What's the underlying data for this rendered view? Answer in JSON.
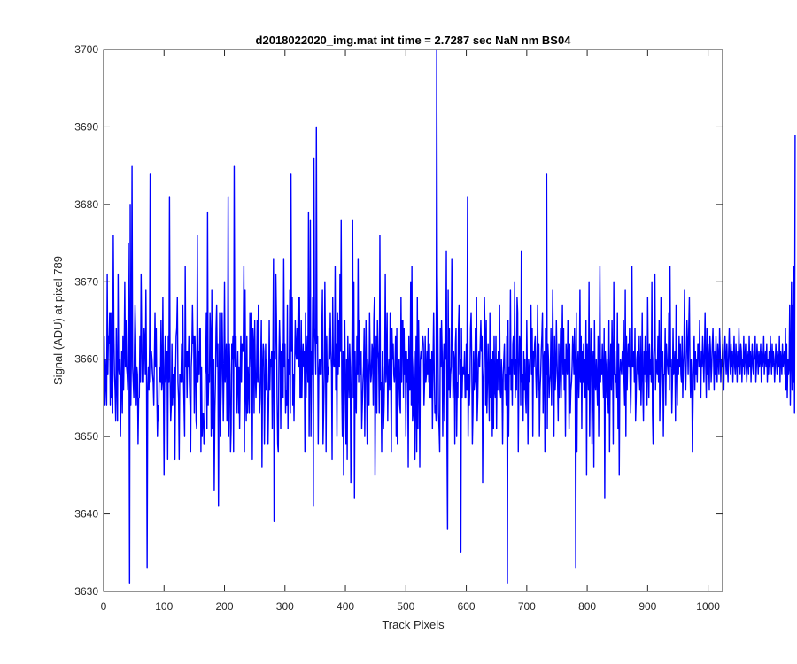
{
  "chart_data": {
    "type": "line",
    "title": "d2018022020_img.mat int time = 2.7287 sec  NaN nm BS04",
    "xlabel": "Track Pixels",
    "ylabel": "Signal (ADU) at pixel 789",
    "xlim": [
      0,
      1024
    ],
    "ylim": [
      3630,
      3700
    ],
    "x_ticks": [
      0,
      100,
      200,
      300,
      400,
      500,
      600,
      700,
      800,
      900,
      1000
    ],
    "y_ticks": [
      3630,
      3640,
      3650,
      3660,
      3670,
      3680,
      3690,
      3700
    ],
    "grid": false,
    "legend": "none",
    "series": [
      {
        "color": "#0000ff",
        "x_start": 1,
        "x_step": 1,
        "values": [
          3663,
          3654,
          3660,
          3657,
          3654,
          3671,
          3658,
          3663,
          3662,
          3666,
          3654,
          3666,
          3655,
          3656,
          3653,
          3676,
          3663,
          3658,
          3656,
          3652,
          3664,
          3657,
          3652,
          3671,
          3659,
          3658,
          3660,
          3650,
          3657,
          3661,
          3653,
          3663,
          3656,
          3661,
          3670,
          3659,
          3665,
          3659,
          3658,
          3656,
          3675,
          3664,
          3631,
          3680,
          3654,
          3661,
          3685,
          3659,
          3657,
          3655,
          3661,
          3667,
          3663,
          3654,
          3659,
          3658,
          3649,
          3655,
          3655,
          3663,
          3657,
          3671,
          3663,
          3657,
          3657,
          3657,
          3664,
          3662,
          3658,
          3669,
          3658,
          3633,
          3656,
          3659,
          3656,
          3662,
          3684,
          3657,
          3661,
          3660,
          3658,
          3657,
          3654,
          3660,
          3666,
          3659,
          3664,
          3656,
          3650,
          3654,
          3652,
          3659,
          3658,
          3657,
          3665,
          3656,
          3657,
          3668,
          3656,
          3645,
          3659,
          3663,
          3657,
          3660,
          3661,
          3647,
          3663,
          3657,
          3681,
          3658,
          3652,
          3654,
          3662,
          3654,
          3658,
          3655,
          3659,
          3647,
          3658,
          3663,
          3664,
          3668,
          3657,
          3655,
          3647,
          3658,
          3658,
          3657,
          3662,
          3657,
          3667,
          3658,
          3654,
          3650,
          3672,
          3659,
          3661,
          3655,
          3661,
          3659,
          3663,
          3657,
          3654,
          3648,
          3659,
          3661,
          3667,
          3662,
          3663,
          3653,
          3663,
          3660,
          3652,
          3651,
          3676,
          3657,
          3661,
          3658,
          3664,
          3664,
          3648,
          3659,
          3650,
          3653,
          3653,
          3649,
          3649,
          3658,
          3659,
          3666,
          3651,
          3679,
          3654,
          3658,
          3657,
          3666,
          3663,
          3650,
          3669,
          3651,
          3656,
          3660,
          3643,
          3653,
          3657,
          3664,
          3667,
          3659,
          3662,
          3641,
          3656,
          3666,
          3650,
          3654,
          3658,
          3666,
          3660,
          3652,
          3658,
          3670,
          3657,
          3659,
          3662,
          3652,
          3655,
          3681,
          3650,
          3662,
          3658,
          3648,
          3651,
          3662,
          3660,
          3663,
          3648,
          3685,
          3661,
          3659,
          3663,
          3653,
          3657,
          3661,
          3653,
          3659,
          3651,
          3658,
          3663,
          3657,
          3662,
          3661,
          3661,
          3672,
          3648,
          3669,
          3656,
          3652,
          3663,
          3653,
          3659,
          3656,
          3653,
          3666,
          3662,
          3659,
          3666,
          3647,
          3664,
          3662,
          3653,
          3665,
          3658,
          3655,
          3658,
          3665,
          3657,
          3667,
          3658,
          3653,
          3655,
          3660,
          3665,
          3646,
          3659,
          3662,
          3661,
          3649,
          3656,
          3662,
          3656,
          3660,
          3655,
          3649,
          3654,
          3665,
          3656,
          3660,
          3659,
          3661,
          3651,
          3660,
          3673,
          3639,
          3661,
          3660,
          3671,
          3665,
          3655,
          3649,
          3648,
          3660,
          3665,
          3661,
          3651,
          3661,
          3655,
          3662,
          3655,
          3673,
          3659,
          3662,
          3653,
          3656,
          3654,
          3667,
          3651,
          3660,
          3658,
          3669,
          3653,
          3684,
          3661,
          3668,
          3654,
          3658,
          3652,
          3659,
          3665,
          3661,
          3660,
          3664,
          3660,
          3668,
          3659,
          3668,
          3655,
          3655,
          3665,
          3655,
          3660,
          3662,
          3659,
          3661,
          3648,
          3666,
          3655,
          3660,
          3663,
          3657,
          3679,
          3650,
          3659,
          3678,
          3650,
          3661,
          3658,
          3668,
          3641,
          3686,
          3664,
          3662,
          3658,
          3690,
          3662,
          3663,
          3649,
          3658,
          3660,
          3658,
          3660,
          3658,
          3663,
          3669,
          3649,
          3653,
          3658,
          3670,
          3661,
          3648,
          3663,
          3657,
          3659,
          3658,
          3664,
          3660,
          3666,
          3661,
          3659,
          3647,
          3668,
          3660,
          3659,
          3659,
          3672,
          3656,
          3662,
          3650,
          3666,
          3658,
          3665,
          3659,
          3671,
          3661,
          3678,
          3656,
          3650,
          3661,
          3645,
          3657,
          3665,
          3656,
          3649,
          3660,
          3647,
          3663,
          3658,
          3655,
          3662,
          3659,
          3644,
          3655,
          3663,
          3678,
          3655,
          3670,
          3642,
          3661,
          3655,
          3653,
          3663,
          3658,
          3673,
          3657,
          3665,
          3660,
          3658,
          3661,
          3651,
          3654,
          3657,
          3659,
          3664,
          3650,
          3659,
          3665,
          3657,
          3649,
          3660,
          3658,
          3654,
          3666,
          3660,
          3657,
          3658,
          3662,
          3661,
          3654,
          3665,
          3668,
          3645,
          3656,
          3663,
          3653,
          3665,
          3661,
          3660,
          3653,
          3676,
          3656,
          3657,
          3648,
          3661,
          3659,
          3651,
          3654,
          3659,
          3671,
          3657,
          3659,
          3666,
          3652,
          3658,
          3660,
          3656,
          3666,
          3658,
          3648,
          3664,
          3660,
          3662,
          3658,
          3657,
          3659,
          3663,
          3650,
          3664,
          3649,
          3654,
          3658,
          3660,
          3654,
          3653,
          3668,
          3657,
          3665,
          3665,
          3655,
          3664,
          3658,
          3661,
          3650,
          3661,
          3657,
          3660,
          3646,
          3663,
          3656,
          3656,
          3670,
          3654,
          3672,
          3652,
          3653,
          3659,
          3661,
          3647,
          3655,
          3663,
          3648,
          3668,
          3651,
          3665,
          3658,
          3646,
          3660,
          3661,
          3660,
          3662,
          3663,
          3662,
          3654,
          3657,
          3663,
          3657,
          3658,
          3661,
          3658,
          3664,
          3657,
          3662,
          3655,
          3660,
          3655,
          3661,
          3651,
          3660,
          3666,
          3658,
          3653,
          3654,
          3652,
          3700,
          3671,
          3663,
          3653,
          3651,
          3648,
          3664,
          3659,
          3665,
          3661,
          3650,
          3659,
          3662,
          3652,
          3664,
          3660,
          3674,
          3650,
          3638,
          3669,
          3656,
          3664,
          3655,
          3658,
          3659,
          3673,
          3664,
          3655,
          3661,
          3660,
          3649,
          3662,
          3664,
          3650,
          3657,
          3655,
          3664,
          3667,
          3658,
          3660,
          3635,
          3664,
          3655,
          3659,
          3659,
          3658,
          3661,
          3655,
          3655,
          3662,
          3656,
          3681,
          3650,
          3658,
          3654,
          3657,
          3664,
          3666,
          3660,
          3649,
          3653,
          3661,
          3656,
          3657,
          3664,
          3657,
          3668,
          3652,
          3655,
          3660,
          3661,
          3659,
          3662,
          3665,
          3661,
          3663,
          3644,
          3657,
          3659,
          3668,
          3663,
          3654,
          3665,
          3653,
          3657,
          3662,
          3657,
          3652,
          3666,
          3655,
          3658,
          3660,
          3650,
          3661,
          3651,
          3663,
          3656,
          3655,
          3663,
          3651,
          3660,
          3656,
          3661,
          3658,
          3667,
          3656,
          3655,
          3660,
          3657,
          3649,
          3658,
          3660,
          3662,
          3656,
          3658,
          3654,
          3663,
          3631,
          3665,
          3650,
          3659,
          3658,
          3669,
          3656,
          3660,
          3654,
          3662,
          3663,
          3658,
          3670,
          3655,
          3660,
          3656,
          3668,
          3666,
          3648,
          3658,
          3663,
          3662,
          3654,
          3674,
          3657,
          3658,
          3652,
          3661,
          3656,
          3660,
          3655,
          3653,
          3665,
          3658,
          3649,
          3660,
          3658,
          3657,
          3662,
          3667,
          3658,
          3664,
          3650,
          3661,
          3659,
          3662,
          3663,
          3658,
          3655,
          3659,
          3667,
          3656,
          3662,
          3650,
          3656,
          3658,
          3661,
          3663,
          3666,
          3653,
          3660,
          3661,
          3648,
          3664,
          3658,
          3684,
          3651,
          3662,
          3660,
          3655,
          3657,
          3658,
          3664,
          3654,
          3660,
          3669,
          3657,
          3650,
          3663,
          3656,
          3658,
          3665,
          3660,
          3657,
          3652,
          3662,
          3655,
          3659,
          3664,
          3655,
          3661,
          3667,
          3658,
          3664,
          3656,
          3660,
          3650,
          3662,
          3660,
          3658,
          3665,
          3660,
          3651,
          3662,
          3653,
          3656,
          3657,
          3659,
          3663,
          3661,
          3658,
          3664,
          3660,
          3633,
          3666,
          3648,
          3659,
          3661,
          3655,
          3658,
          3669,
          3657,
          3663,
          3651,
          3661,
          3657,
          3662,
          3655,
          3660,
          3655,
          3665,
          3645,
          3662,
          3659,
          3656,
          3670,
          3650,
          3657,
          3664,
          3660,
          3649,
          3659,
          3661,
          3646,
          3665,
          3657,
          3656,
          3660,
          3657,
          3654,
          3663,
          3650,
          3660,
          3672,
          3657,
          3660,
          3658,
          3662,
          3658,
          3655,
          3664,
          3642,
          3661,
          3659,
          3655,
          3660,
          3656,
          3653,
          3665,
          3648,
          3658,
          3662,
          3656,
          3665,
          3660,
          3649,
          3670,
          3658,
          3661,
          3657,
          3658,
          3655,
          3666,
          3651,
          3662,
          3645,
          3658,
          3660,
          3659,
          3658,
          3661,
          3660,
          3665,
          3657,
          3654,
          3669,
          3650,
          3663,
          3656,
          3660,
          3662,
          3659,
          3664,
          3657,
          3653,
          3658,
          3672,
          3659,
          3659,
          3661,
          3657,
          3664,
          3652,
          3655,
          3660,
          3661,
          3658,
          3663,
          3658,
          3656,
          3663,
          3654,
          3658,
          3666,
          3656,
          3652,
          3661,
          3658,
          3663,
          3657,
          3661,
          3654,
          3668,
          3659,
          3655,
          3662,
          3658,
          3660,
          3657,
          3670,
          3653,
          3649,
          3660,
          3662,
          3671,
          3656,
          3660,
          3659,
          3658,
          3663,
          3657,
          3665,
          3652,
          3657,
          3668,
          3660,
          3656,
          3661,
          3650,
          3658,
          3658,
          3664,
          3654,
          3662,
          3660,
          3659,
          3658,
          3666,
          3656,
          3672,
          3659,
          3660,
          3653,
          3657,
          3664,
          3658,
          3659,
          3661,
          3652,
          3667,
          3659,
          3654,
          3660,
          3658,
          3663,
          3659,
          3662,
          3658,
          3657,
          3663,
          3655,
          3659,
          3661,
          3669,
          3656,
          3656,
          3660,
          3665,
          3662,
          3658,
          3664,
          3668,
          3659,
          3655,
          3660,
          3658,
          3648,
          3654,
          3661,
          3663,
          3656,
          3661,
          3658,
          3660,
          3657,
          3662,
          3662,
          3659,
          3665,
          3658,
          3655,
          3661,
          3659,
          3663,
          3660,
          3657,
          3661,
          3666,
          3659,
          3655,
          3664,
          3658,
          3662,
          3660,
          3656,
          3663,
          3661,
          3657,
          3659,
          3662,
          3664,
          3660,
          3656,
          3661,
          3658,
          3663,
          3659,
          3657,
          3662,
          3660,
          3658,
          3664,
          3661,
          3657,
          3660,
          3659,
          3662,
          3658,
          3656,
          3661,
          3663,
          3660,
          3658,
          3662,
          3659,
          3657,
          3661,
          3664,
          3660,
          3658,
          3662,
          3659,
          3661,
          3657,
          3660,
          3663,
          3659,
          3658,
          3662,
          3660,
          3657,
          3661,
          3659,
          3664,
          3660,
          3658,
          3662,
          3661,
          3657,
          3660,
          3659,
          3663,
          3658,
          3660,
          3662,
          3659,
          3657,
          3661,
          3660,
          3658,
          3663,
          3659,
          3661,
          3657,
          3660,
          3662,
          3659,
          3658,
          3661,
          3660,
          3663,
          3657,
          3659,
          3662,
          3660,
          3658,
          3661,
          3659,
          3660,
          3662,
          3657,
          3661,
          3659,
          3660,
          3663,
          3658,
          3660,
          3661,
          3659,
          3662,
          3657,
          3660,
          3658,
          3661,
          3659,
          3663,
          3660,
          3658,
          3662,
          3659,
          3661,
          3660,
          3657,
          3659,
          3662,
          3660,
          3658,
          3661,
          3660,
          3659,
          3663,
          3657,
          3661,
          3660,
          3658,
          3662,
          3659,
          3660,
          3661,
          3658,
          3664,
          3656,
          3662,
          3655,
          3660,
          3658,
          3659,
          3667,
          3654,
          3660,
          3670,
          3656,
          3667,
          3657,
          3672,
          3653,
          3689
        ]
      }
    ]
  }
}
